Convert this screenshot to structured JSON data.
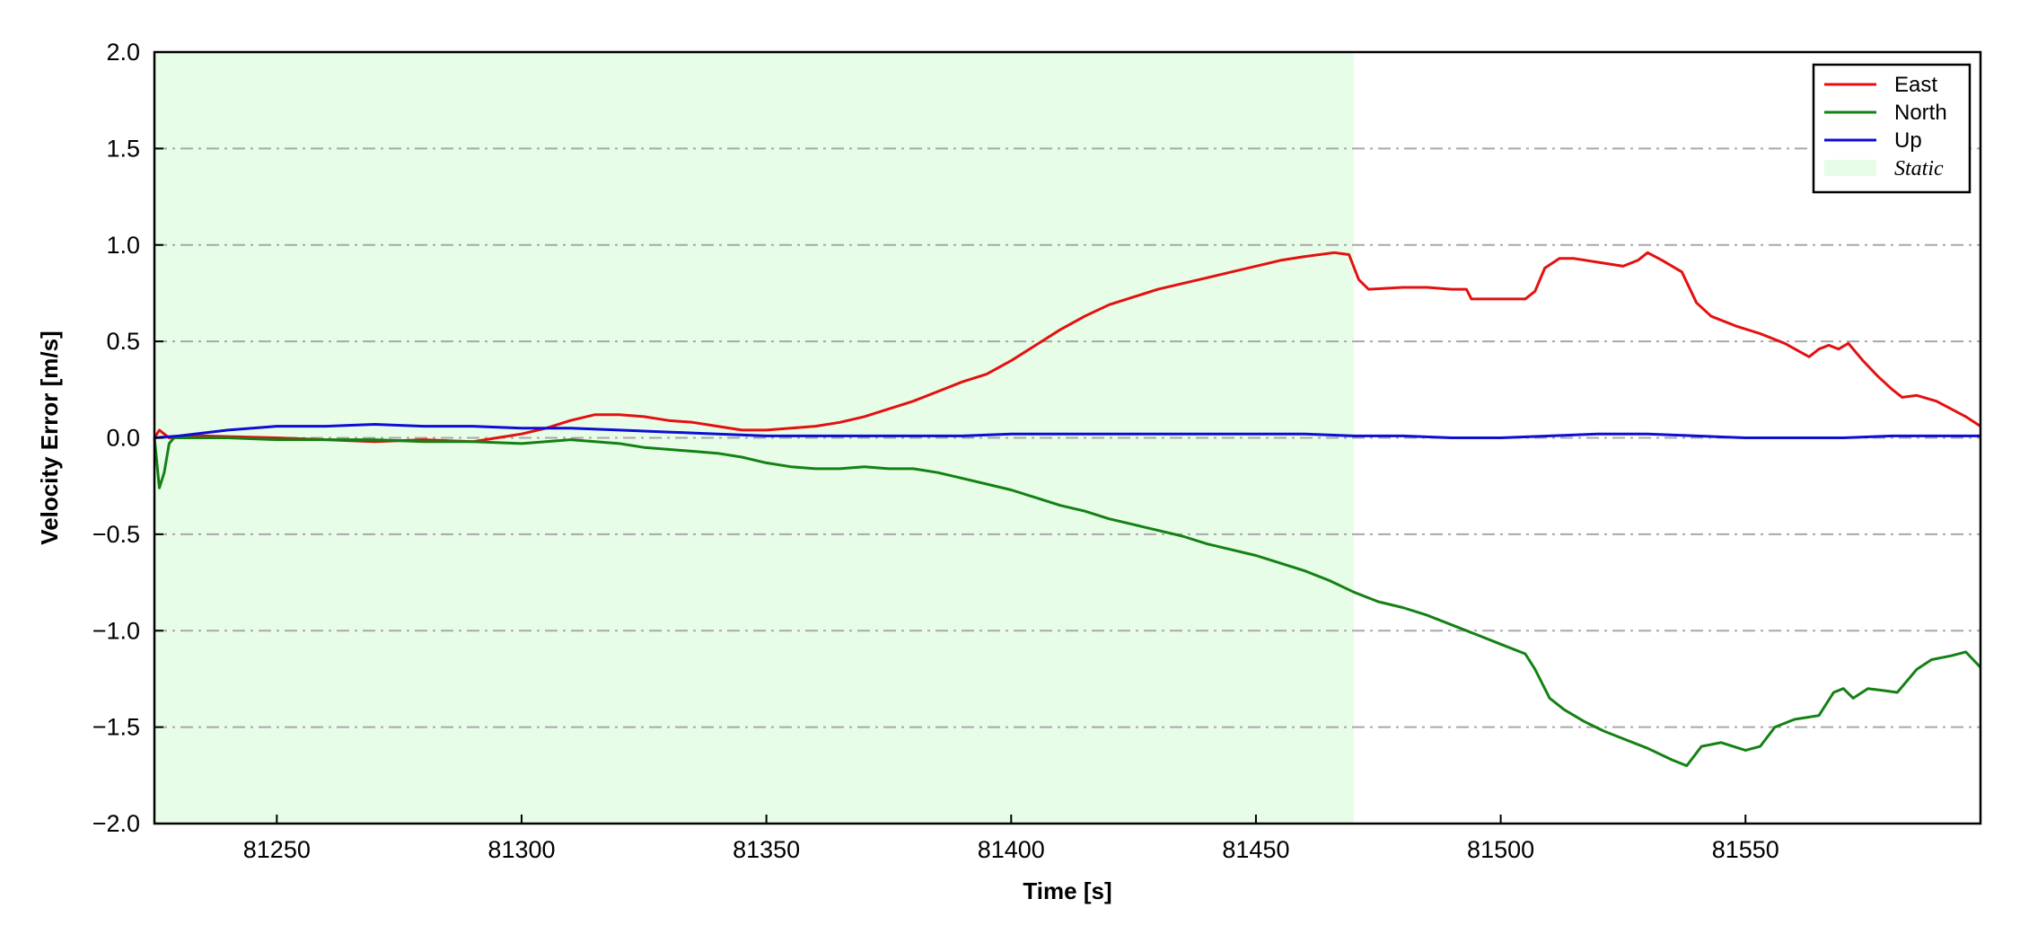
{
  "chart_data": {
    "type": "line",
    "title": "",
    "xlabel": "Time [s]",
    "ylabel": "Velocity Error [m/s]",
    "xlim": [
      81225,
      81598
    ],
    "ylim": [
      -2.0,
      2.0
    ],
    "xticks": [
      81250,
      81300,
      81350,
      81400,
      81450,
      81500,
      81550
    ],
    "xtick_labels": [
      "81250",
      "81300",
      "81350",
      "81400",
      "81450",
      "81500",
      "81550"
    ],
    "yticks": [
      -2.0,
      -1.5,
      -1.0,
      -0.5,
      0.0,
      0.5,
      1.0,
      1.5,
      2.0
    ],
    "ytick_labels": [
      "−2.0",
      "−1.5",
      "−1.0",
      "−0.5",
      "0.0",
      "0.5",
      "1.0",
      "1.5",
      "2.0"
    ],
    "grid": "horizontal dash-dot",
    "legend_position": "top-right",
    "shaded_regions": [
      {
        "name": "Static",
        "x_start": 81225,
        "x_end": 81470,
        "color": "#e8fde8"
      }
    ],
    "series": [
      {
        "name": "East",
        "color": "#e41010",
        "points": [
          [
            81225,
            0.0
          ],
          [
            81226,
            0.04
          ],
          [
            81228,
            0.0
          ],
          [
            81235,
            0.01
          ],
          [
            81250,
            0.0
          ],
          [
            81260,
            -0.01
          ],
          [
            81270,
            -0.02
          ],
          [
            81280,
            -0.01
          ],
          [
            81290,
            -0.02
          ],
          [
            81295,
            0.0
          ],
          [
            81300,
            0.02
          ],
          [
            81305,
            0.05
          ],
          [
            81310,
            0.09
          ],
          [
            81315,
            0.12
          ],
          [
            81320,
            0.12
          ],
          [
            81325,
            0.11
          ],
          [
            81330,
            0.09
          ],
          [
            81335,
            0.08
          ],
          [
            81340,
            0.06
          ],
          [
            81345,
            0.04
          ],
          [
            81350,
            0.04
          ],
          [
            81355,
            0.05
          ],
          [
            81360,
            0.06
          ],
          [
            81365,
            0.08
          ],
          [
            81370,
            0.11
          ],
          [
            81375,
            0.15
          ],
          [
            81380,
            0.19
          ],
          [
            81385,
            0.24
          ],
          [
            81390,
            0.29
          ],
          [
            81395,
            0.33
          ],
          [
            81400,
            0.4
          ],
          [
            81405,
            0.48
          ],
          [
            81410,
            0.56
          ],
          [
            81415,
            0.63
          ],
          [
            81420,
            0.69
          ],
          [
            81425,
            0.73
          ],
          [
            81430,
            0.77
          ],
          [
            81435,
            0.8
          ],
          [
            81440,
            0.83
          ],
          [
            81445,
            0.86
          ],
          [
            81450,
            0.89
          ],
          [
            81455,
            0.92
          ],
          [
            81460,
            0.94
          ],
          [
            81466,
            0.96
          ],
          [
            81469,
            0.95
          ],
          [
            81471,
            0.82
          ],
          [
            81473,
            0.77
          ],
          [
            81480,
            0.78
          ],
          [
            81485,
            0.78
          ],
          [
            81490,
            0.77
          ],
          [
            81493,
            0.77
          ],
          [
            81494,
            0.72
          ],
          [
            81500,
            0.72
          ],
          [
            81505,
            0.72
          ],
          [
            81507,
            0.76
          ],
          [
            81509,
            0.88
          ],
          [
            81512,
            0.93
          ],
          [
            81515,
            0.93
          ],
          [
            81520,
            0.91
          ],
          [
            81525,
            0.89
          ],
          [
            81528,
            0.92
          ],
          [
            81530,
            0.96
          ],
          [
            81533,
            0.92
          ],
          [
            81537,
            0.86
          ],
          [
            81540,
            0.7
          ],
          [
            81543,
            0.63
          ],
          [
            81548,
            0.58
          ],
          [
            81553,
            0.54
          ],
          [
            81558,
            0.49
          ],
          [
            81563,
            0.42
          ],
          [
            81565,
            0.46
          ],
          [
            81567,
            0.48
          ],
          [
            81569,
            0.46
          ],
          [
            81571,
            0.49
          ],
          [
            81574,
            0.4
          ],
          [
            81577,
            0.32
          ],
          [
            81580,
            0.25
          ],
          [
            81582,
            0.21
          ],
          [
            81585,
            0.22
          ],
          [
            81589,
            0.19
          ],
          [
            81592,
            0.15
          ],
          [
            81595,
            0.11
          ],
          [
            81598,
            0.06
          ]
        ]
      },
      {
        "name": "North",
        "color": "#138113",
        "points": [
          [
            81225,
            0.0
          ],
          [
            81226,
            -0.26
          ],
          [
            81227,
            -0.18
          ],
          [
            81228,
            -0.03
          ],
          [
            81229,
            0.0
          ],
          [
            81240,
            0.0
          ],
          [
            81250,
            -0.01
          ],
          [
            81260,
            -0.01
          ],
          [
            81270,
            -0.01
          ],
          [
            81280,
            -0.02
          ],
          [
            81290,
            -0.02
          ],
          [
            81300,
            -0.03
          ],
          [
            81305,
            -0.02
          ],
          [
            81310,
            -0.01
          ],
          [
            81315,
            -0.02
          ],
          [
            81320,
            -0.03
          ],
          [
            81325,
            -0.05
          ],
          [
            81330,
            -0.06
          ],
          [
            81335,
            -0.07
          ],
          [
            81340,
            -0.08
          ],
          [
            81345,
            -0.1
          ],
          [
            81350,
            -0.13
          ],
          [
            81355,
            -0.15
          ],
          [
            81360,
            -0.16
          ],
          [
            81365,
            -0.16
          ],
          [
            81370,
            -0.15
          ],
          [
            81375,
            -0.16
          ],
          [
            81380,
            -0.16
          ],
          [
            81385,
            -0.18
          ],
          [
            81390,
            -0.21
          ],
          [
            81395,
            -0.24
          ],
          [
            81400,
            -0.27
          ],
          [
            81405,
            -0.31
          ],
          [
            81410,
            -0.35
          ],
          [
            81415,
            -0.38
          ],
          [
            81420,
            -0.42
          ],
          [
            81425,
            -0.45
          ],
          [
            81430,
            -0.48
          ],
          [
            81435,
            -0.51
          ],
          [
            81440,
            -0.55
          ],
          [
            81445,
            -0.58
          ],
          [
            81450,
            -0.61
          ],
          [
            81455,
            -0.65
          ],
          [
            81460,
            -0.69
          ],
          [
            81465,
            -0.74
          ],
          [
            81470,
            -0.8
          ],
          [
            81475,
            -0.85
          ],
          [
            81480,
            -0.88
          ],
          [
            81485,
            -0.92
          ],
          [
            81490,
            -0.97
          ],
          [
            81495,
            -1.02
          ],
          [
            81500,
            -1.07
          ],
          [
            81505,
            -1.12
          ],
          [
            81507,
            -1.2
          ],
          [
            81510,
            -1.35
          ],
          [
            81513,
            -1.41
          ],
          [
            81517,
            -1.47
          ],
          [
            81521,
            -1.52
          ],
          [
            81525,
            -1.56
          ],
          [
            81530,
            -1.61
          ],
          [
            81535,
            -1.67
          ],
          [
            81538,
            -1.7
          ],
          [
            81541,
            -1.6
          ],
          [
            81545,
            -1.58
          ],
          [
            81550,
            -1.62
          ],
          [
            81553,
            -1.6
          ],
          [
            81556,
            -1.5
          ],
          [
            81560,
            -1.46
          ],
          [
            81565,
            -1.44
          ],
          [
            81568,
            -1.32
          ],
          [
            81570,
            -1.3
          ],
          [
            81572,
            -1.35
          ],
          [
            81575,
            -1.3
          ],
          [
            81578,
            -1.31
          ],
          [
            81581,
            -1.32
          ],
          [
            81585,
            -1.2
          ],
          [
            81588,
            -1.15
          ],
          [
            81592,
            -1.13
          ],
          [
            81595,
            -1.11
          ],
          [
            81598,
            -1.19
          ]
        ]
      },
      {
        "name": "Up",
        "color": "#0d0dd6",
        "points": [
          [
            81225,
            0.0
          ],
          [
            81230,
            0.01
          ],
          [
            81240,
            0.04
          ],
          [
            81250,
            0.06
          ],
          [
            81260,
            0.06
          ],
          [
            81270,
            0.07
          ],
          [
            81280,
            0.06
          ],
          [
            81290,
            0.06
          ],
          [
            81300,
            0.05
          ],
          [
            81310,
            0.05
          ],
          [
            81320,
            0.04
          ],
          [
            81330,
            0.03
          ],
          [
            81340,
            0.02
          ],
          [
            81350,
            0.01
          ],
          [
            81360,
            0.01
          ],
          [
            81370,
            0.01
          ],
          [
            81380,
            0.01
          ],
          [
            81390,
            0.01
          ],
          [
            81400,
            0.02
          ],
          [
            81410,
            0.02
          ],
          [
            81420,
            0.02
          ],
          [
            81430,
            0.02
          ],
          [
            81440,
            0.02
          ],
          [
            81450,
            0.02
          ],
          [
            81460,
            0.02
          ],
          [
            81470,
            0.01
          ],
          [
            81480,
            0.01
          ],
          [
            81490,
            0.0
          ],
          [
            81500,
            0.0
          ],
          [
            81510,
            0.01
          ],
          [
            81520,
            0.02
          ],
          [
            81530,
            0.02
          ],
          [
            81540,
            0.01
          ],
          [
            81550,
            0.0
          ],
          [
            81560,
            0.0
          ],
          [
            81570,
            0.0
          ],
          [
            81580,
            0.01
          ],
          [
            81590,
            0.01
          ],
          [
            81598,
            0.01
          ]
        ]
      }
    ],
    "legend": [
      {
        "label": "East",
        "kind": "line",
        "color": "#e41010"
      },
      {
        "label": "North",
        "kind": "line",
        "color": "#138113"
      },
      {
        "label": "Up",
        "kind": "line",
        "color": "#0d0dd6"
      },
      {
        "label": "Static",
        "kind": "patch",
        "color": "#e8fde8"
      }
    ]
  }
}
